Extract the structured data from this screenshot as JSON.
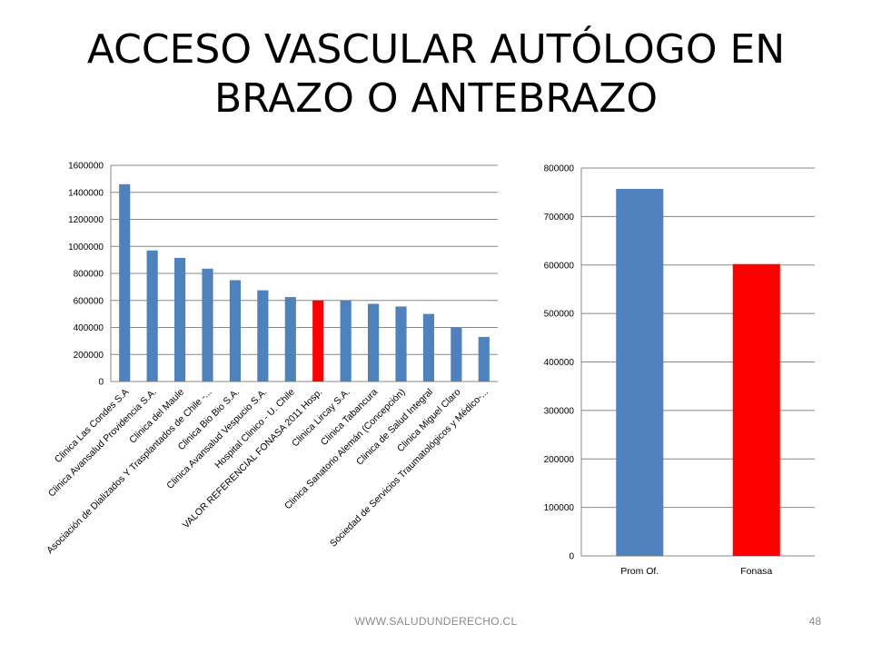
{
  "slide": {
    "title_line1": "ACCESO VASCULAR AUTÓLOGO EN",
    "title_line2": "BRAZO O ANTEBRAZO",
    "footer": "WWW.SALUDUNDERECHO.CL",
    "page_number": "48"
  },
  "colors": {
    "default_bar": "#4f81bd",
    "highlight_bar": "#ff0000",
    "grid": "#878787"
  },
  "chart_data": [
    {
      "type": "bar",
      "categories": [
        "Clinica Las Condes S.A",
        "Clinica Avansalud Providencia S.A.",
        "Clinica del Maule",
        "Asociación de Dializados Y Trasplantados de Chile -...",
        "Clinica Bio Bio S.A.",
        "Clinica Avansalud Vespucio S.A.",
        "Hospital Clinico - U. Chile",
        "VALOR REFERENCIAL FONASA 2011 Hosp.",
        "Clinica Lircay S.A.",
        "Clinica Tabancura",
        "Clinica Sanatorio Alemán (Concepción)",
        "Clinica de Salud Integral",
        "Clinica Miguel Claro",
        "Sociedad de Servicios Traumatológicos y Médico-..."
      ],
      "values": [
        1460000,
        970000,
        915000,
        835000,
        750000,
        675000,
        625000,
        600000,
        600000,
        575000,
        555000,
        500000,
        400000,
        330000
      ],
      "highlight_index": 7,
      "ylim": [
        0,
        1600000
      ],
      "yticks": [
        0,
        200000,
        400000,
        600000,
        800000,
        1000000,
        1200000,
        1400000,
        1600000
      ],
      "grid": true,
      "legend": "none"
    },
    {
      "type": "bar",
      "categories": [
        "Prom Of.",
        "Fonasa"
      ],
      "values": [
        757000,
        602000
      ],
      "highlight_index": 1,
      "ylim": [
        0,
        800000
      ],
      "yticks": [
        0,
        100000,
        200000,
        300000,
        400000,
        500000,
        600000,
        700000,
        800000
      ],
      "grid": true,
      "legend": "none"
    }
  ]
}
